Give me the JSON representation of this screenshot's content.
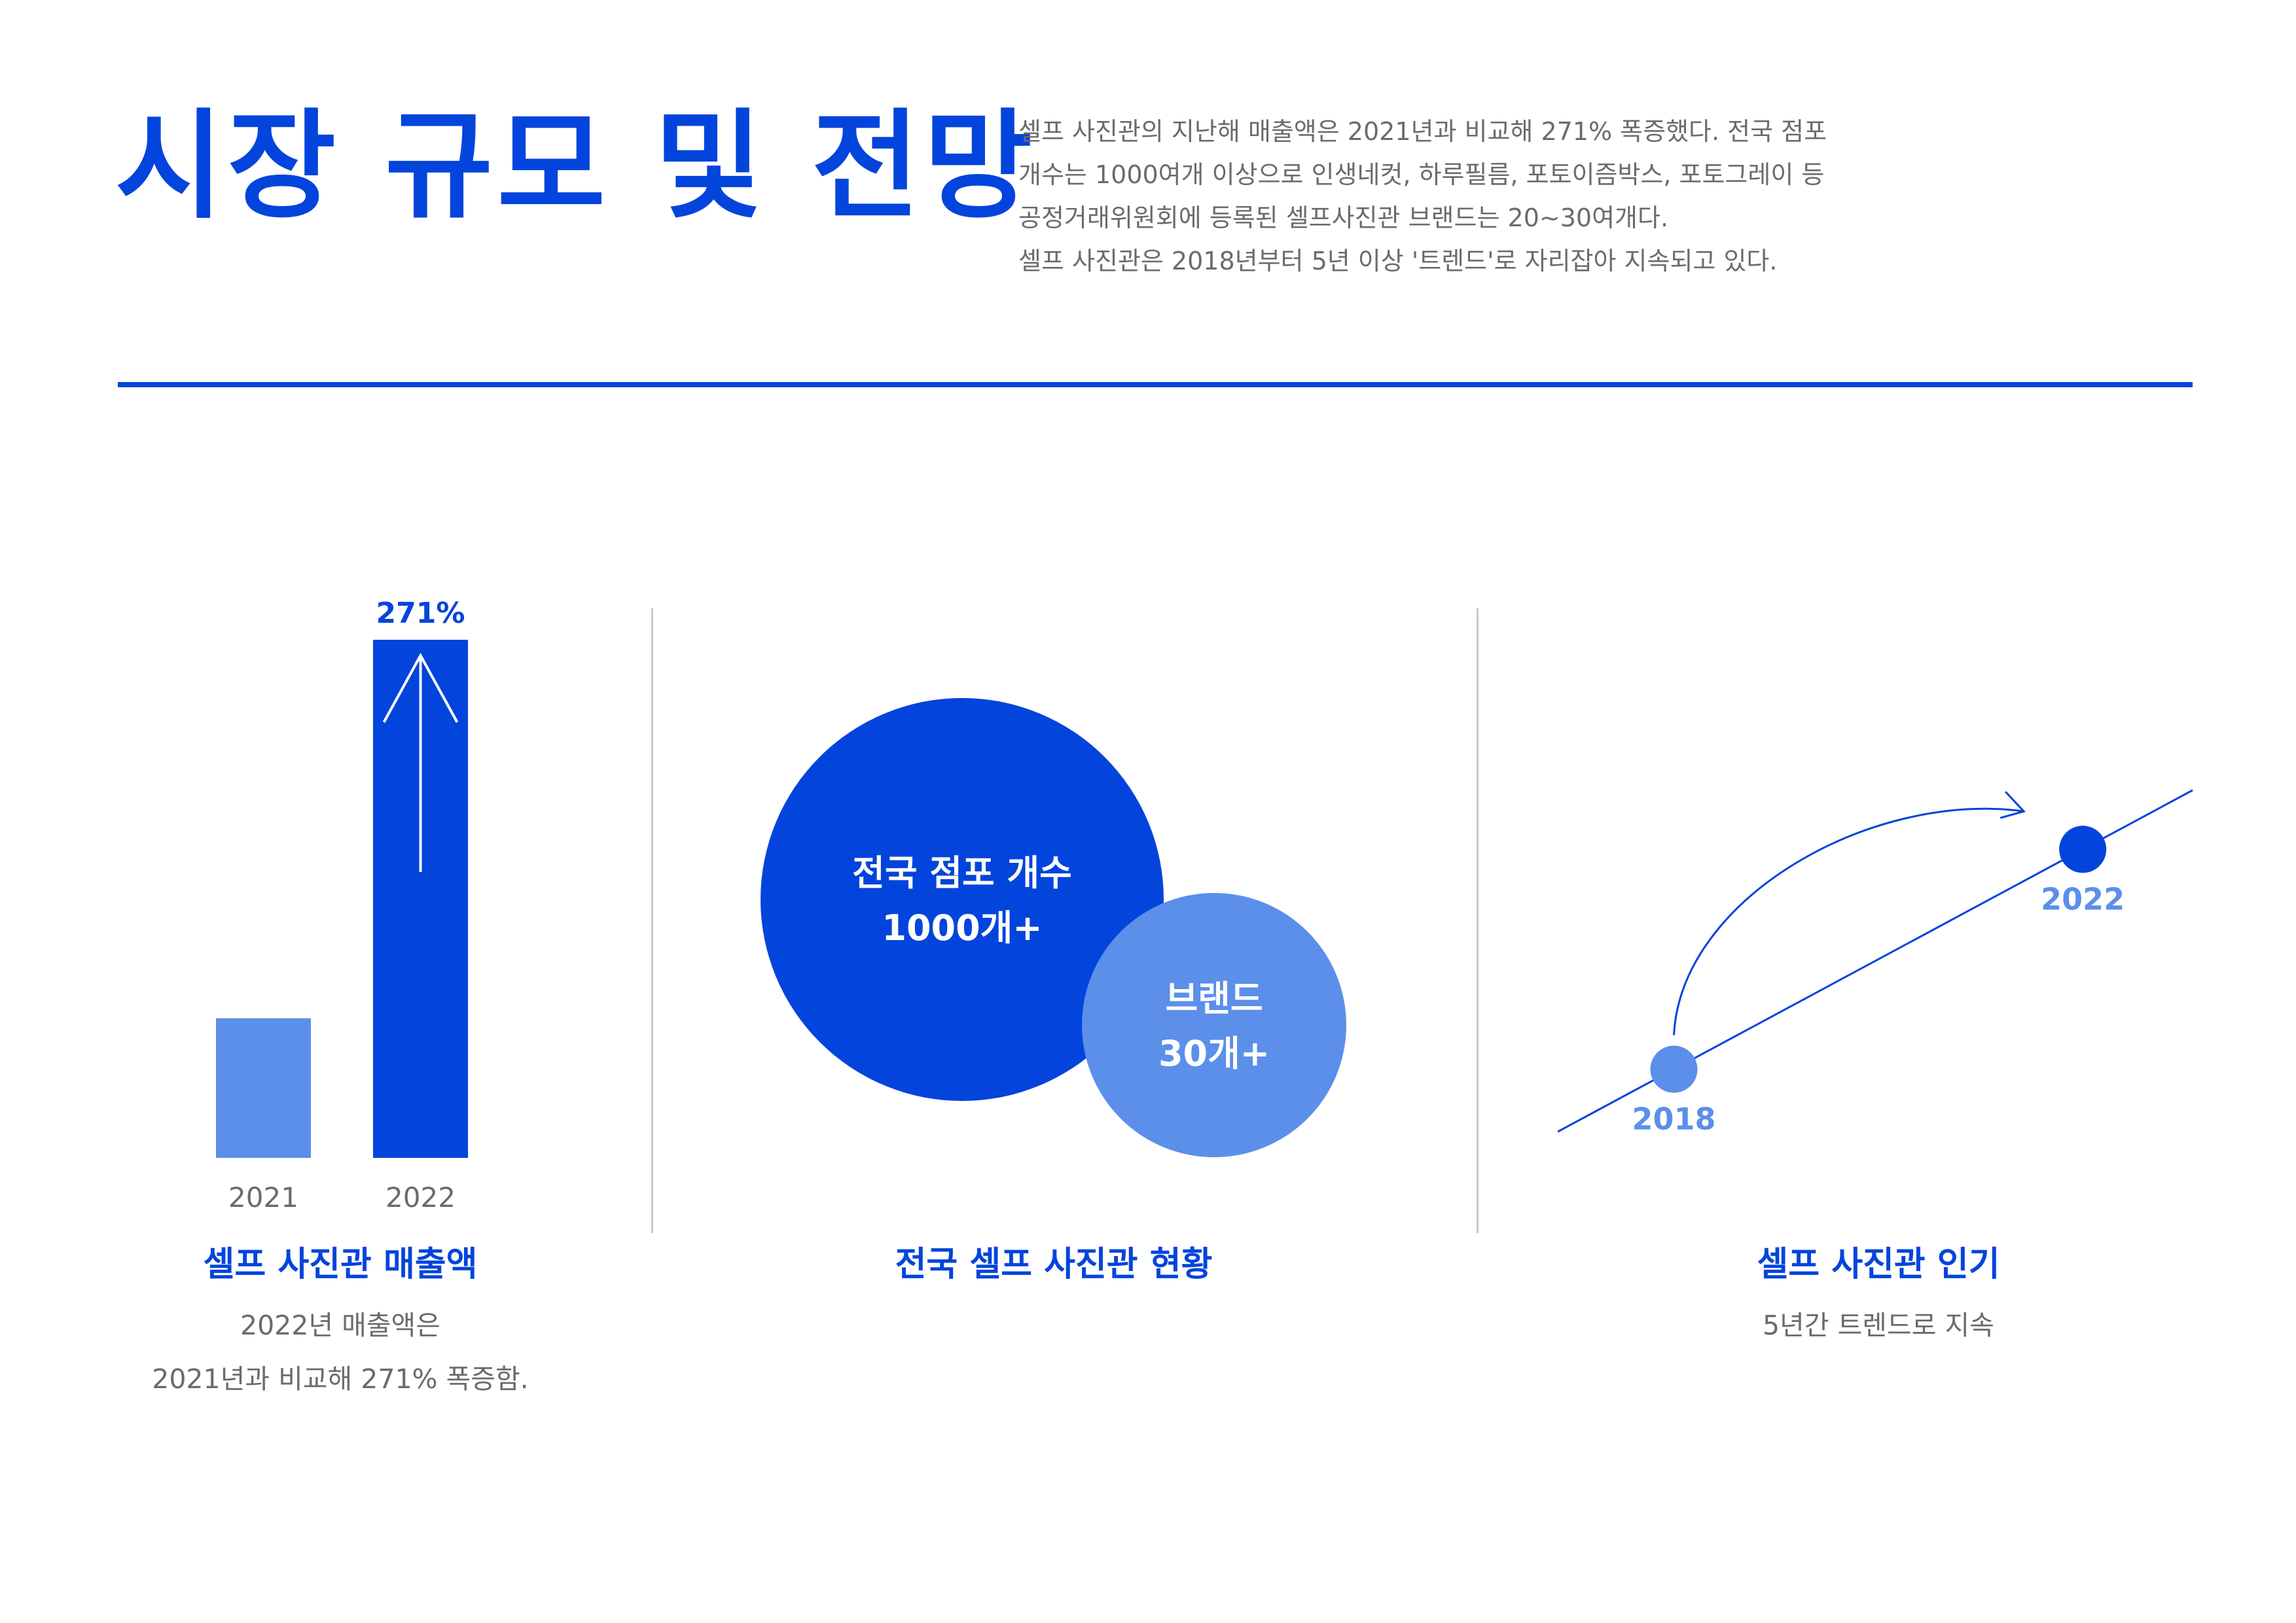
{
  "header": {
    "title": "시장 규모 및 전망",
    "intro_lines": [
      "셀프 사진관의 지난해 매출액은 2021년과 비교해 271% 폭증했다. 전국 점포",
      "개수는 1000여개 이상으로 인생네컷, 하루필름, 포토이즘박스, 포토그레이 등",
      "공정거래위원회에 등록된 셀프사진관 브랜드는 20~30여개다.",
      "셀프 사진관은 2018년부터 5년 이상 '트렌드'로 자리잡아 지속되고 있다."
    ]
  },
  "colors": {
    "primary": "#0344DC",
    "light": "#5B8FEA",
    "muted": "#6b6b6b",
    "divider": "#c8c8c8"
  },
  "panels": {
    "revenue": {
      "title": "셀프 사진관 매출액",
      "desc_lines": [
        "2022년 매출액은",
        "2021년과 비교해 271% 폭증함."
      ]
    },
    "status": {
      "title": "전국 셀프 사진관 현황"
    },
    "popularity": {
      "title": "셀프 사진관 인기",
      "desc": "5년간 트렌드로 지속"
    }
  },
  "chart_data": [
    {
      "type": "bar",
      "categories": [
        "2021",
        "2022"
      ],
      "values": [
        100,
        371
      ],
      "data_labels": [
        "",
        "271%"
      ],
      "colors": [
        "#5B8FEA",
        "#0344DC"
      ],
      "annotations": [
        "up-arrow-icon"
      ]
    },
    {
      "type": "bubble",
      "bubbles": [
        {
          "label": "전국 점포 개수",
          "value_label": "1000개+",
          "value": 1000,
          "color": "#0344DC"
        },
        {
          "label": "브랜드",
          "value_label": "30개+",
          "value": 30,
          "color": "#5B8FEA"
        }
      ]
    },
    {
      "type": "line",
      "points": [
        {
          "x": "2018",
          "color": "#5B8FEA"
        },
        {
          "x": "2022",
          "color": "#0344DC"
        }
      ],
      "annotations": [
        "curved-arrow-icon"
      ]
    }
  ]
}
